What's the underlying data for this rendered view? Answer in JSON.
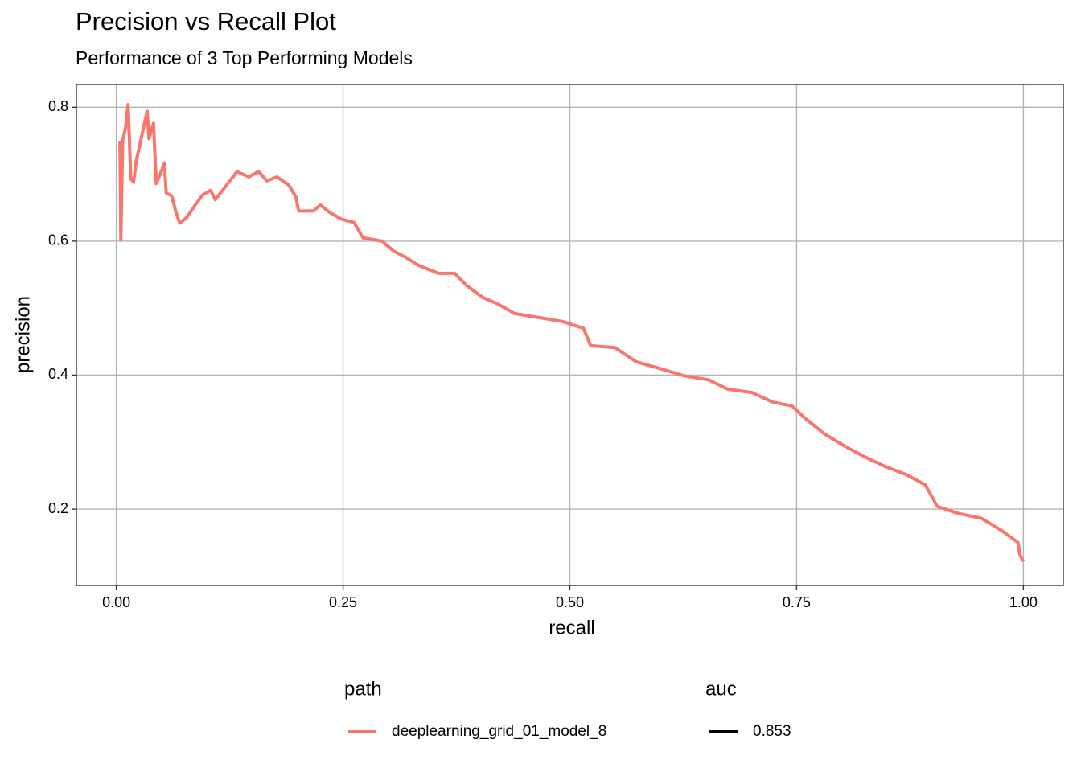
{
  "chart_data": {
    "type": "line",
    "title": "Precision vs Recall Plot",
    "subtitle": "Performance of 3 Top Performing Models",
    "x_label": "recall",
    "y_label": "precision",
    "x": [
      0.004,
      0.005,
      0.007,
      0.01,
      0.013,
      0.016,
      0.019,
      0.022,
      0.034,
      0.036,
      0.041,
      0.044,
      0.049,
      0.053,
      0.055,
      0.061,
      0.066,
      0.07,
      0.078,
      0.087,
      0.095,
      0.104,
      0.109,
      0.12,
      0.133,
      0.146,
      0.157,
      0.166,
      0.177,
      0.19,
      0.198,
      0.201,
      0.217,
      0.225,
      0.235,
      0.248,
      0.262,
      0.272,
      0.293,
      0.306,
      0.319,
      0.333,
      0.355,
      0.373,
      0.386,
      0.404,
      0.421,
      0.439,
      0.466,
      0.492,
      0.515,
      0.523,
      0.55,
      0.573,
      0.599,
      0.626,
      0.653,
      0.674,
      0.701,
      0.723,
      0.745,
      0.759,
      0.781,
      0.803,
      0.825,
      0.847,
      0.87,
      0.892,
      0.905,
      0.927,
      0.954,
      0.976,
      0.994,
      0.996,
      1.0
    ],
    "series": [
      {
        "name": "deeplearning_grid_01_model_8",
        "color": "#f8766d",
        "values": [
          0.75,
          0.602,
          0.75,
          0.768,
          0.804,
          0.693,
          0.688,
          0.72,
          0.794,
          0.753,
          0.776,
          0.686,
          0.702,
          0.717,
          0.672,
          0.668,
          0.642,
          0.627,
          0.636,
          0.654,
          0.669,
          0.676,
          0.662,
          0.681,
          0.704,
          0.696,
          0.704,
          0.69,
          0.696,
          0.684,
          0.666,
          0.645,
          0.645,
          0.654,
          0.643,
          0.633,
          0.628,
          0.605,
          0.6,
          0.585,
          0.576,
          0.564,
          0.552,
          0.552,
          0.534,
          0.516,
          0.506,
          0.492,
          0.486,
          0.48,
          0.47,
          0.444,
          0.441,
          0.42,
          0.41,
          0.399,
          0.393,
          0.379,
          0.374,
          0.36,
          0.354,
          0.336,
          0.312,
          0.294,
          0.278,
          0.264,
          0.252,
          0.236,
          0.204,
          0.194,
          0.186,
          0.168,
          0.15,
          0.132,
          0.122
        ]
      }
    ],
    "xlim": [
      -0.044,
      1.044
    ],
    "ylim": [
      0.086,
      0.834
    ],
    "xticks": [
      {
        "value": 0,
        "label": "0.00"
      },
      {
        "value": 0.25,
        "label": "0.25"
      },
      {
        "value": 0.5,
        "label": "0.50"
      },
      {
        "value": 0.75,
        "label": "0.75"
      },
      {
        "value": 1,
        "label": "1.00"
      }
    ],
    "yticks": [
      0.2,
      0.4,
      0.6,
      0.8
    ],
    "grid": true,
    "legend_position": "bottom",
    "legend_title": "path",
    "auc_legend": {
      "title": "auc",
      "labels": [
        "0.853"
      ],
      "color": "#000000"
    }
  }
}
